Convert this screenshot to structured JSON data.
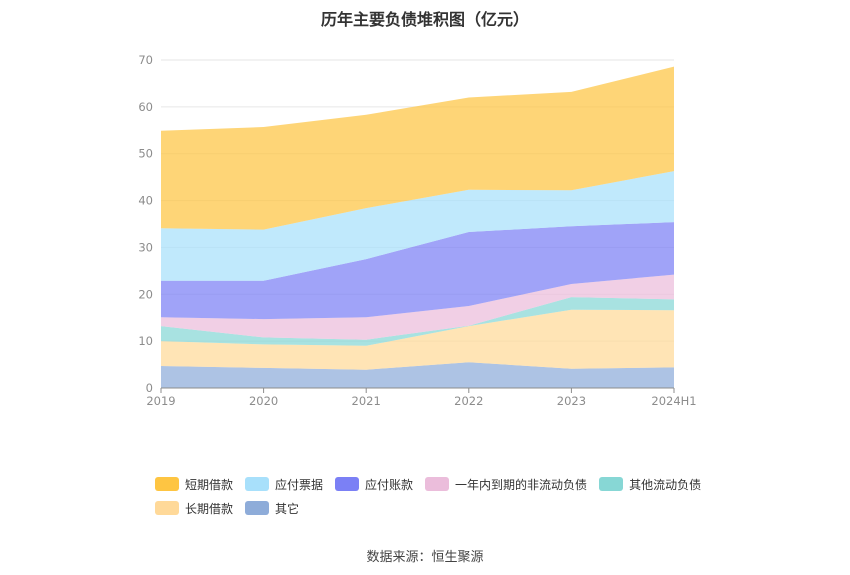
{
  "title": "历年主要负债堆积图（亿元）",
  "source": "数据来源：恒生聚源",
  "chart_data": {
    "type": "area",
    "stacked": true,
    "title": "历年主要负债堆积图（亿元）",
    "categories": [
      "2019",
      "2020",
      "2021",
      "2022",
      "2023",
      "2024H1"
    ],
    "yticks": [
      "0",
      "10",
      "20",
      "30",
      "40",
      "50",
      "60",
      "70"
    ],
    "ylim": [
      0,
      70
    ],
    "grid": true,
    "legend_position": "bottom",
    "series": [
      {
        "name": "其它",
        "color": "#8eacd9",
        "values": [
          4.7,
          4.3,
          3.9,
          5.5,
          4.1,
          4.4
        ]
      },
      {
        "name": "长期借款",
        "color": "#ffd999",
        "values": [
          5.3,
          5.0,
          5.1,
          7.7,
          12.6,
          12.2
        ]
      },
      {
        "name": "其他流动负债",
        "color": "#87d7d5",
        "values": [
          3.2,
          1.5,
          1.3,
          0.1,
          2.7,
          2.3
        ]
      },
      {
        "name": "一年内到期的非流动负债",
        "color": "#ebbddb",
        "values": [
          1.9,
          3.9,
          4.8,
          4.2,
          2.8,
          5.3
        ]
      },
      {
        "name": "应付账款",
        "color": "#7b80f5",
        "values": [
          7.8,
          8.2,
          12.4,
          15.8,
          12.3,
          11.2
        ]
      },
      {
        "name": "应付票据",
        "color": "#a8e0fb",
        "values": [
          11.2,
          10.9,
          10.9,
          9.0,
          7.7,
          10.9
        ]
      },
      {
        "name": "短期借款",
        "color": "#fec542",
        "values": [
          20.8,
          21.9,
          19.9,
          19.7,
          21.0,
          22.3
        ]
      }
    ]
  },
  "legend": {
    "row1": [
      "短期借款",
      "应付票据",
      "应付账款",
      "一年内到期的非流动负债",
      "其他流动负债"
    ],
    "row2": [
      "长期借款",
      "其它"
    ]
  },
  "legend_colors": {
    "短期借款": "#fec542",
    "应付票据": "#a8e0fb",
    "应付账款": "#7b80f5",
    "一年内到期的非流动负债": "#ebbddb",
    "其他流动负债": "#87d7d5",
    "长期借款": "#ffd999",
    "其它": "#8eacd9"
  }
}
